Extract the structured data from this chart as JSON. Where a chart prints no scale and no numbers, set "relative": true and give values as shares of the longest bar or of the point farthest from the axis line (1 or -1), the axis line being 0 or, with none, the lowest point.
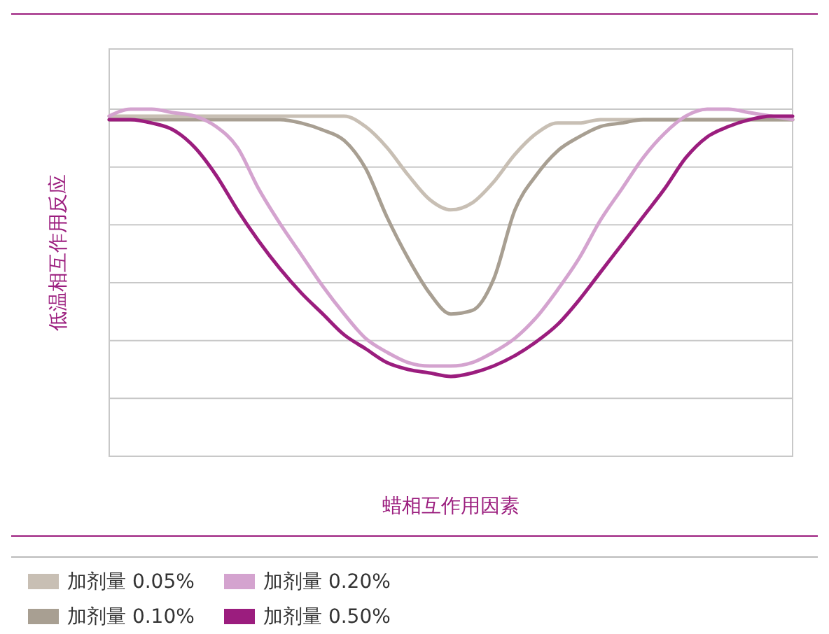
{
  "chart_data": {
    "type": "line",
    "relative": true,
    "xlabel": "蜡相互作用因素",
    "ylabel": "低温相互作用反应",
    "grid": true,
    "legend": "bottom",
    "marker": "none",
    "line_style": "solid",
    "categories": [
      null,
      null,
      null,
      null,
      null,
      null,
      null,
      null,
      null,
      null,
      null,
      null,
      null,
      null,
      null,
      null,
      null,
      null,
      null,
      null,
      null,
      null,
      null,
      null,
      null,
      null,
      null,
      null,
      null,
      null,
      null,
      null,
      null
    ],
    "series": [
      {
        "name": "加剂量 0.05%",
        "color": "#c8bfb4",
        "values": [
          0.98,
          0.98,
          0.98,
          0.98,
          0.98,
          0.98,
          0.98,
          0.98,
          0.98,
          0.98,
          0.98,
          0.98,
          0.95,
          0.89,
          0.81,
          0.74,
          0.71,
          0.73,
          0.79,
          0.87,
          0.93,
          0.96,
          0.96,
          0.97,
          0.97,
          0.97,
          0.97,
          0.97,
          0.97,
          0.97,
          0.97,
          0.97,
          0.97
        ]
      },
      {
        "name": "加剂量 0.10%",
        "color": "#a89f92",
        "values": [
          0.97,
          0.97,
          0.97,
          0.97,
          0.97,
          0.97,
          0.97,
          0.97,
          0.97,
          0.96,
          0.94,
          0.91,
          0.83,
          0.69,
          0.57,
          0.47,
          0.41,
          0.42,
          0.51,
          0.71,
          0.81,
          0.88,
          0.92,
          0.95,
          0.96,
          0.97,
          0.97,
          0.97,
          0.97,
          0.97,
          0.97,
          0.97,
          0.97
        ]
      },
      {
        "name": "加剂量 0.20%",
        "color": "#d4a3cf",
        "values": [
          0.98,
          1.0,
          1.0,
          0.99,
          0.98,
          0.95,
          0.89,
          0.77,
          0.67,
          0.58,
          0.49,
          0.41,
          0.34,
          0.3,
          0.27,
          0.26,
          0.26,
          0.27,
          0.3,
          0.34,
          0.4,
          0.48,
          0.57,
          0.68,
          0.77,
          0.86,
          0.93,
          0.98,
          1.0,
          1.0,
          0.99,
          0.98,
          0.97
        ]
      },
      {
        "name": "加剂量 0.50%",
        "color": "#9b1d7e",
        "values": [
          0.97,
          0.97,
          0.96,
          0.94,
          0.89,
          0.81,
          0.71,
          0.62,
          0.54,
          0.47,
          0.41,
          0.35,
          0.31,
          0.27,
          0.25,
          0.24,
          0.23,
          0.24,
          0.26,
          0.29,
          0.33,
          0.38,
          0.45,
          0.53,
          0.61,
          0.69,
          0.77,
          0.86,
          0.92,
          0.95,
          0.97,
          0.98,
          0.98
        ]
      }
    ]
  }
}
